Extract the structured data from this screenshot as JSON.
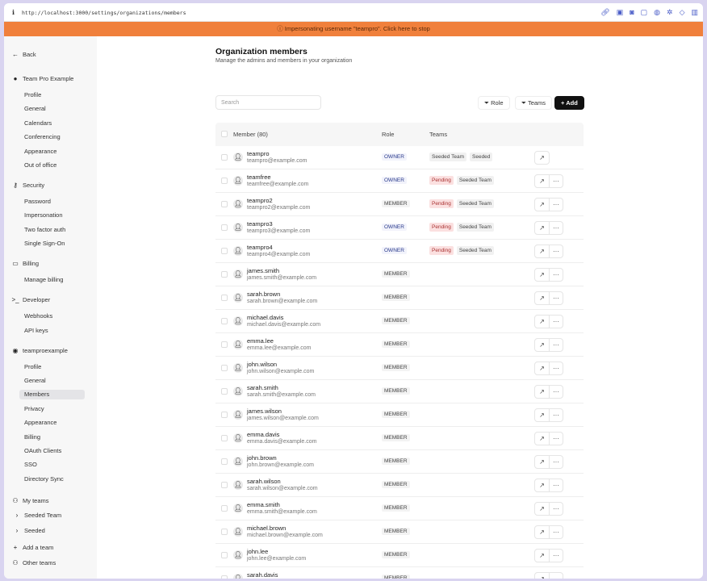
{
  "browser": {
    "url": "http://localhost:3000/settings/organizations/members"
  },
  "banner": {
    "text": "Impersonating username \"teampro\". Click here to stop"
  },
  "sidebar": {
    "back": "Back",
    "sections": [
      {
        "label": "Team Pro Example",
        "icon": "user-icon",
        "items": [
          "Profile",
          "General",
          "Calendars",
          "Conferencing",
          "Appearance",
          "Out of office"
        ]
      },
      {
        "label": "Security",
        "icon": "key-icon",
        "items": [
          "Password",
          "Impersonation",
          "Two factor auth",
          "Single Sign-On"
        ]
      },
      {
        "label": "Billing",
        "icon": "credit-card-icon",
        "items": [
          "Manage billing"
        ]
      },
      {
        "label": "Developer",
        "icon": "terminal-icon",
        "items": [
          "Webhooks",
          "API keys"
        ]
      },
      {
        "label": "teamproexample",
        "icon": "org-logo-icon",
        "items": [
          "Profile",
          "General",
          "Members",
          "Privacy",
          "Appearance",
          "Billing",
          "OAuth Clients",
          "SSO",
          "Directory Sync"
        ],
        "active": "Members"
      }
    ],
    "my_teams": {
      "label": "My teams",
      "items": [
        "Seeded Team",
        "Seeded"
      ]
    },
    "add_team": "Add a team",
    "other_teams": "Other teams"
  },
  "page": {
    "title": "Organization members",
    "subtitle": "Manage the admins and members in your organization"
  },
  "toolbar": {
    "search_placeholder": "Search",
    "role": "Role",
    "teams": "Teams",
    "add": "Add"
  },
  "table": {
    "headers": {
      "member": "Member (80)",
      "role": "Role",
      "teams": "Teams"
    },
    "rows": [
      {
        "name": "teampro",
        "email": "teampro@example.com",
        "role": "OWNER",
        "teams": [
          "Seeded Team",
          "Seeded"
        ],
        "more": false
      },
      {
        "name": "teamfree",
        "email": "teamfree@example.com",
        "role": "OWNER",
        "teams": [
          "Pending",
          "Seeded Team"
        ],
        "more": true
      },
      {
        "name": "teampro2",
        "email": "teampro2@example.com",
        "role": "MEMBER",
        "teams": [
          "Pending",
          "Seeded Team"
        ],
        "more": true
      },
      {
        "name": "teampro3",
        "email": "teampro3@example.com",
        "role": "OWNER",
        "teams": [
          "Pending",
          "Seeded Team"
        ],
        "more": true
      },
      {
        "name": "teampro4",
        "email": "teampro4@example.com",
        "role": "OWNER",
        "teams": [
          "Pending",
          "Seeded Team"
        ],
        "more": true
      },
      {
        "name": "james.smith",
        "email": "james.smith@example.com",
        "role": "MEMBER",
        "teams": [],
        "more": true
      },
      {
        "name": "sarah.brown",
        "email": "sarah.brown@example.com",
        "role": "MEMBER",
        "teams": [],
        "more": true
      },
      {
        "name": "michael.davis",
        "email": "michael.davis@example.com",
        "role": "MEMBER",
        "teams": [],
        "more": true
      },
      {
        "name": "emma.lee",
        "email": "emma.lee@example.com",
        "role": "MEMBER",
        "teams": [],
        "more": true
      },
      {
        "name": "john.wilson",
        "email": "john.wilson@example.com",
        "role": "MEMBER",
        "teams": [],
        "more": true
      },
      {
        "name": "sarah.smith",
        "email": "sarah.smith@example.com",
        "role": "MEMBER",
        "teams": [],
        "more": true
      },
      {
        "name": "james.wilson",
        "email": "james.wilson@example.com",
        "role": "MEMBER",
        "teams": [],
        "more": true
      },
      {
        "name": "emma.davis",
        "email": "emma.davis@example.com",
        "role": "MEMBER",
        "teams": [],
        "more": true
      },
      {
        "name": "john.brown",
        "email": "john.brown@example.com",
        "role": "MEMBER",
        "teams": [],
        "more": true
      },
      {
        "name": "sarah.wilson",
        "email": "sarah.wilson@example.com",
        "role": "MEMBER",
        "teams": [],
        "more": true
      },
      {
        "name": "emma.smith",
        "email": "emma.smith@example.com",
        "role": "MEMBER",
        "teams": [],
        "more": true
      },
      {
        "name": "michael.brown",
        "email": "michael.brown@example.com",
        "role": "MEMBER",
        "teams": [],
        "more": true
      },
      {
        "name": "john.lee",
        "email": "john.lee@example.com",
        "role": "MEMBER",
        "teams": [],
        "more": true
      },
      {
        "name": "sarah.davis",
        "email": "sarah.davis@example.com",
        "role": "MEMBER",
        "teams": [],
        "more": true
      }
    ]
  },
  "colors": {
    "banner": "#f0803c",
    "add_button": "#111111",
    "pending": "#fbe0e0"
  }
}
